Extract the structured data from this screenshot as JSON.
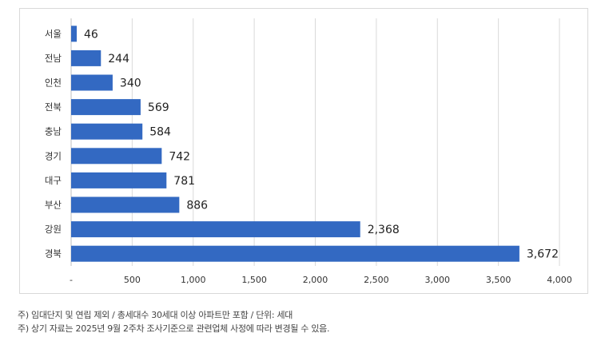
{
  "chart_data": {
    "type": "bar",
    "orientation": "horizontal",
    "categories": [
      "서울",
      "전남",
      "인천",
      "전북",
      "충남",
      "경기",
      "대구",
      "부산",
      "강원",
      "경북"
    ],
    "values": [
      46,
      244,
      340,
      569,
      584,
      742,
      781,
      886,
      2368,
      3672
    ],
    "value_labels": [
      "46",
      "244",
      "340",
      "569",
      "584",
      "742",
      "781",
      "886",
      "2,368",
      "3,672"
    ],
    "xlim": [
      0,
      4000
    ],
    "x_ticks": [
      0,
      500,
      1000,
      1500,
      2000,
      2500,
      3000,
      3500,
      4000
    ],
    "x_tick_labels": [
      "-",
      "500",
      "1,000",
      "1,500",
      "2,000",
      "2,500",
      "3,000",
      "3,500",
      "4,000"
    ],
    "bar_color": "#3369c2",
    "grid": true,
    "grid_axis": "x",
    "legend": "none"
  },
  "notes": [
    "주) 임대단지 및 연립 제외 / 총세대수 30세대 이상 아파트만 포함 / 단위: 세대",
    "주) 상기 자료는 2025년 9월 2주차 조사기준으로 관련업체 사정에 따라 변경될 수 있음."
  ]
}
